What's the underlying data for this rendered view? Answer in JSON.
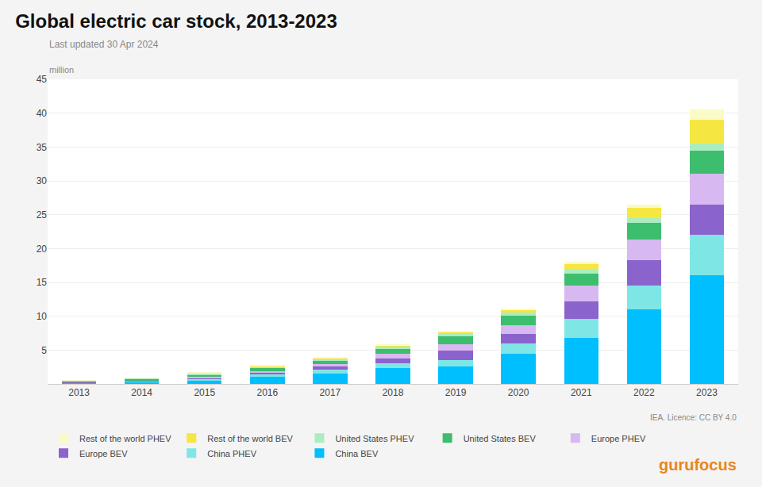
{
  "chart_data": {
    "type": "bar",
    "stacked": true,
    "title": "Global electric car stock, 2013-2023",
    "subtitle": "Last updated 30 Apr 2024",
    "ylabel": "million",
    "annotations": [
      "IEA. Licence: CC BY 4.0",
      "gurufocus"
    ],
    "categories": [
      "2013",
      "2014",
      "2015",
      "2016",
      "2017",
      "2018",
      "2019",
      "2020",
      "2021",
      "2022",
      "2023"
    ],
    "series": [
      {
        "name": "China BEV",
        "color": "#00BFFF",
        "values": [
          0.16,
          0.28,
          0.55,
          1.0,
          1.5,
          2.3,
          2.6,
          4.5,
          6.8,
          11.0,
          16.0
        ]
      },
      {
        "name": "China PHEV",
        "color": "#7FE6E6",
        "values": [
          0.07,
          0.1,
          0.2,
          0.4,
          0.6,
          0.7,
          0.9,
          1.5,
          2.8,
          3.5,
          6.0
        ]
      },
      {
        "name": "Europe BEV",
        "color": "#8B63CC",
        "values": [
          0.05,
          0.09,
          0.18,
          0.3,
          0.45,
          0.75,
          1.4,
          1.4,
          2.6,
          3.8,
          4.5
        ]
      },
      {
        "name": "Europe PHEV",
        "color": "#D8B8F0",
        "values": [
          0.04,
          0.07,
          0.12,
          0.2,
          0.35,
          0.65,
          1.0,
          1.3,
          2.3,
          3.0,
          4.5
        ]
      },
      {
        "name": "United States BEV",
        "color": "#3DBD6E",
        "values": [
          0.1,
          0.18,
          0.35,
          0.45,
          0.55,
          0.8,
          1.1,
          1.35,
          1.8,
          2.5,
          3.5
        ]
      },
      {
        "name": "United States PHEV",
        "color": "#AAEEC0",
        "values": [
          0.09,
          0.14,
          0.18,
          0.22,
          0.28,
          0.36,
          0.45,
          0.5,
          0.55,
          0.75,
          1.0
        ]
      },
      {
        "name": "Rest of the world BEV",
        "color": "#F5E642",
        "values": [
          0.02,
          0.04,
          0.06,
          0.09,
          0.12,
          0.18,
          0.28,
          0.4,
          0.9,
          1.5,
          3.5
        ]
      },
      {
        "name": "Rest of the world PHEV",
        "color": "#FAFAC8",
        "values": [
          0.01,
          0.02,
          0.03,
          0.05,
          0.07,
          0.1,
          0.15,
          0.2,
          0.25,
          0.45,
          1.5
        ]
      }
    ],
    "ylim": [
      0,
      45
    ],
    "yticks": [
      5,
      10,
      15,
      20,
      25,
      30,
      35,
      40,
      45
    ],
    "grid": true,
    "legend": "bottom"
  }
}
